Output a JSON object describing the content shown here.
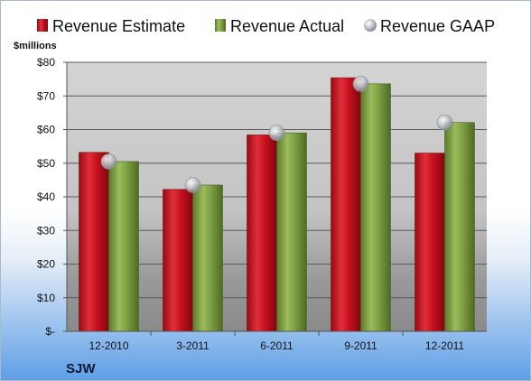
{
  "chart_data": {
    "type": "bar",
    "unit_label": "$millions",
    "company": "SJW",
    "categories": [
      "12-2010",
      "3-2011",
      "6-2011",
      "9-2011",
      "12-2011"
    ],
    "series": [
      {
        "name": "Revenue Estimate",
        "kind": "bar",
        "color": "#c8101e",
        "values": [
          53.2,
          42.2,
          58.4,
          75.4,
          53.0
        ]
      },
      {
        "name": "Revenue Actual",
        "kind": "bar",
        "color": "#7e9f43",
        "values": [
          50.5,
          43.5,
          59.0,
          73.6,
          62.1
        ]
      },
      {
        "name": "Revenue GAAP",
        "kind": "marker",
        "color": "#b8bcc4",
        "values": [
          50.5,
          43.5,
          59.0,
          73.6,
          62.1
        ]
      }
    ],
    "ylim": [
      0,
      80
    ],
    "yticks": [
      0,
      10,
      20,
      30,
      40,
      50,
      60,
      70,
      80
    ],
    "ytick_labels": [
      "$-",
      "$10",
      "$20",
      "$30",
      "$40",
      "$50",
      "$60",
      "$70",
      "$80"
    ],
    "grid": true,
    "legend_position": "top"
  }
}
